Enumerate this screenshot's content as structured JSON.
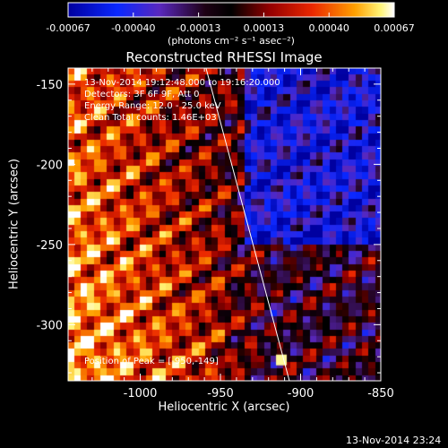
{
  "chart_data": {
    "type": "heatmap",
    "title": "Reconstructed RHESSI Image",
    "xlabel": "Heliocentric X (arcsec)",
    "ylabel": "Heliocentric Y (arcsec)",
    "xlim": [
      -1045,
      -850
    ],
    "ylim": [
      -335,
      -140
    ],
    "x_ticks": [
      -1000,
      -950,
      -900,
      -850
    ],
    "y_ticks": [
      -150,
      -200,
      -250,
      -300
    ],
    "colorbar": {
      "min": -0.00067,
      "max": 0.00067,
      "ticks": [
        "-0.00067",
        "-0.00040",
        "-0.00013",
        "0.00013",
        "0.00040",
        "0.00067"
      ],
      "units": "(photons cm⁻² s⁻¹ asec⁻²)"
    },
    "annotations": {
      "time": "13-Nov-2014 19:12:48.000 to 19:16:20.000",
      "detectors": "Detectors: 3F 6F 9F, Att 0",
      "energy": "Energy Range: 12.0 - 25.0 keV",
      "clean": "Clean    Total counts: 1.46E+03",
      "peak": "Position of Peak = [-950,-149]"
    },
    "peak_position": [
      -950,
      -149
    ],
    "total_counts": 1460
  },
  "footer_timestamp": "13-Nov-2014 23:24"
}
